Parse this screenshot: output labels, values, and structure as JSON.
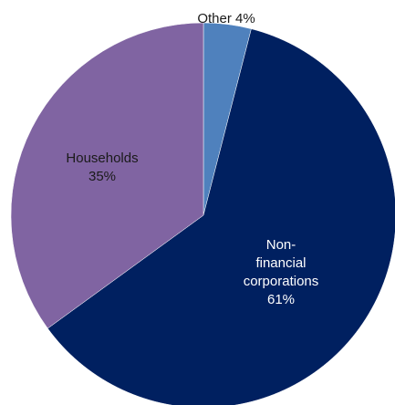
{
  "chart_data": {
    "type": "pie",
    "title": "",
    "slices": [
      {
        "label": "Other",
        "value": 4,
        "value_label": "4%",
        "color": "#4f81bd",
        "label_color": "#1a1a1a"
      },
      {
        "label": "Non-financial corporations",
        "value": 61,
        "value_label": "61%",
        "color": "#002060",
        "label_color": "#ffffff"
      },
      {
        "label": "Households",
        "value": 35,
        "value_label": "35%",
        "color": "#8064a2",
        "label_color": "#1a1a1a"
      }
    ],
    "start_angle_deg": 0,
    "direction": "clockwise",
    "legend": "none"
  },
  "labels": {
    "other": "Other 4%",
    "nfc_line1": "Non-",
    "nfc_line2": "financial",
    "nfc_line3": "corporations",
    "nfc_line4": "61%",
    "households_line1": "Households",
    "households_line2": "35%"
  }
}
